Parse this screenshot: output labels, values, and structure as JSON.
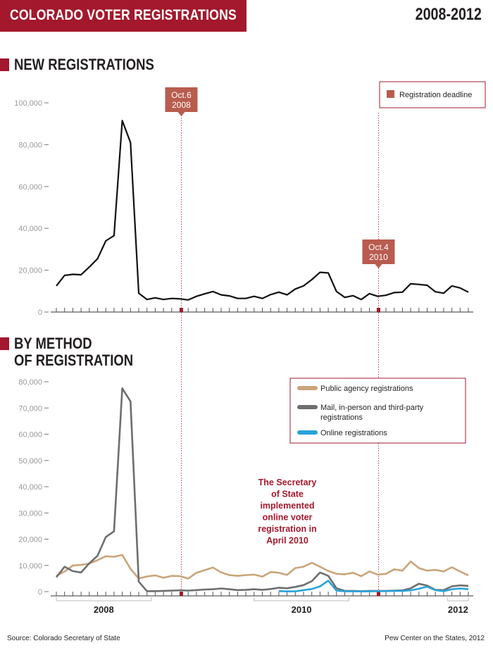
{
  "header": {
    "title": "COLORADO VOTER REGISTRATIONS",
    "years": "2008-2012"
  },
  "sections": {
    "new": {
      "title": "NEW REGISTRATIONS"
    },
    "method": {
      "title_line1": "BY METHOD",
      "title_line2": "OF REGISTRATION"
    }
  },
  "colors": {
    "brand": "#a3182c",
    "deadline_marker": "#b85c4f",
    "total": "#111111",
    "public": "#c9a57a",
    "mail": "#6e6e70",
    "online": "#29a3d9",
    "axis_text": "#999999",
    "note_text": "#a3182c"
  },
  "chart_data": [
    {
      "type": "line",
      "title": "NEW REGISTRATIONS",
      "x_start": "2007-07",
      "x_end": "2012-04",
      "x_labels": [
        "2008",
        "2010",
        "2012"
      ],
      "ylim": [
        0,
        100000
      ],
      "yticks": [
        0,
        20000,
        40000,
        60000,
        80000,
        100000
      ],
      "ytick_labels": [
        "0",
        "20,000",
        "40,000",
        "60,000",
        "80,000",
        "100,000"
      ],
      "legend": {
        "label": "Registration deadline",
        "position": "top-right"
      },
      "deadlines": [
        {
          "date": "2008-10-06",
          "label_line1": "Oct.6",
          "label_line2": "2008"
        },
        {
          "date": "2010-10-04",
          "label_line1": "Oct.4",
          "label_line2": "2010"
        }
      ],
      "series": [
        {
          "values": [
            12500,
            17500,
            18000,
            17800,
            21500,
            25500,
            34000,
            36500,
            91500,
            81000,
            9000,
            6000,
            6800,
            6000,
            6500,
            6300,
            5800,
            7500,
            8700,
            9800,
            8200,
            7700,
            6500,
            6500,
            7500,
            6500,
            8300,
            9500,
            8200,
            11000,
            12500,
            15500,
            19000,
            18700,
            9800,
            7000,
            7800,
            6000,
            8800,
            7500,
            8000,
            9300,
            9500,
            13500,
            13200,
            12800,
            9700,
            9000,
            12500,
            11500,
            9500
          ]
        }
      ]
    },
    {
      "type": "line",
      "title": "BY METHOD OF REGISTRATION",
      "x_start": "2007-07",
      "x_end": "2012-04",
      "x_labels": [
        "2008",
        "2010",
        "2012"
      ],
      "ylim": [
        0,
        80000
      ],
      "yticks": [
        0,
        10000,
        20000,
        30000,
        40000,
        50000,
        60000,
        70000,
        80000
      ],
      "ytick_labels": [
        "0",
        "10,000",
        "20,000",
        "30,000",
        "40,000",
        "50,000",
        "60,000",
        "70,000",
        "80,000"
      ],
      "legend_position": "top-right",
      "annotation": "The Secretary of State implemented online voter registration in April 2010",
      "series": [
        {
          "name": "Public agency registrations",
          "values": [
            6000,
            7700,
            10000,
            10200,
            10700,
            12000,
            13500,
            13300,
            14000,
            8700,
            5000,
            5800,
            6200,
            5300,
            6000,
            5900,
            5000,
            7200,
            8200,
            9200,
            7300,
            6300,
            6000,
            6300,
            6500,
            5700,
            7500,
            7200,
            6400,
            9000,
            9500,
            11000,
            9500,
            7900,
            6800,
            6600,
            7200,
            5900,
            7700,
            6500,
            6800,
            8500,
            8000,
            11500,
            9000,
            8000,
            8300,
            7700,
            9300,
            7700,
            6200
          ]
        },
        {
          "name": "Mail, in-person and third-party registrations",
          "values": [
            5500,
            9500,
            7800,
            7300,
            10800,
            13700,
            20800,
            23000,
            77500,
            72500,
            3800,
            200,
            200,
            300,
            400,
            500,
            400,
            600,
            800,
            900,
            1200,
            900,
            600,
            700,
            900,
            700,
            1000,
            1500,
            1300,
            1800,
            2500,
            4000,
            7300,
            6000,
            1300,
            300,
            300,
            200,
            300,
            300,
            300,
            400,
            500,
            1300,
            3000,
            2300,
            700,
            600,
            2000,
            2400,
            2200
          ]
        },
        {
          "name": "Online registrations",
          "start_index": 27,
          "values": [
            200,
            100,
            100,
            600,
            1000,
            2000,
            4200,
            400,
            100,
            100,
            100,
            100,
            200,
            200,
            300,
            300,
            500,
            1100,
            1900,
            600,
            200,
            900,
            1200,
            900
          ]
        }
      ]
    }
  ],
  "footer": {
    "source": "Source: Colorado Secretary of State",
    "credit": "Pew Center on the States, 2012"
  }
}
